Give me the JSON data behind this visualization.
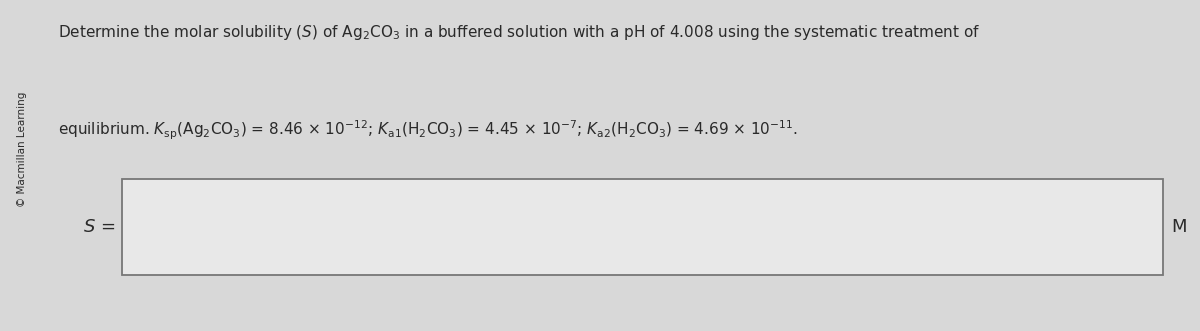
{
  "background_color": "#d8d8d8",
  "watermark_text": "© Macmillan Learning",
  "label_s": "$S$ =",
  "label_m": "M",
  "line1": "Determine the molar solubility ($S$) of Ag$_2$CO$_3$ in a buffered solution with a pH of 4.008 using the systematic treatment of",
  "line2": "equilibrium. $K_{\\mathrm{sp}}$(Ag$_2$CO$_3$) = 8.46 $\\times$ 10$^{-12}$; $K_{\\mathrm{a1}}$(H$_2$CO$_3$) = 4.45 $\\times$ 10$^{-7}$; $K_{\\mathrm{a2}}$(H$_2$CO$_3$) = 4.69 $\\times$ 10$^{-11}$.",
  "text_color": "#2a2a2a",
  "box_edge_color": "#777777",
  "box_fill_color": "#e8e8e8",
  "text_fontsize": 11.0,
  "label_fontsize": 13,
  "watermark_fontsize": 7.5
}
